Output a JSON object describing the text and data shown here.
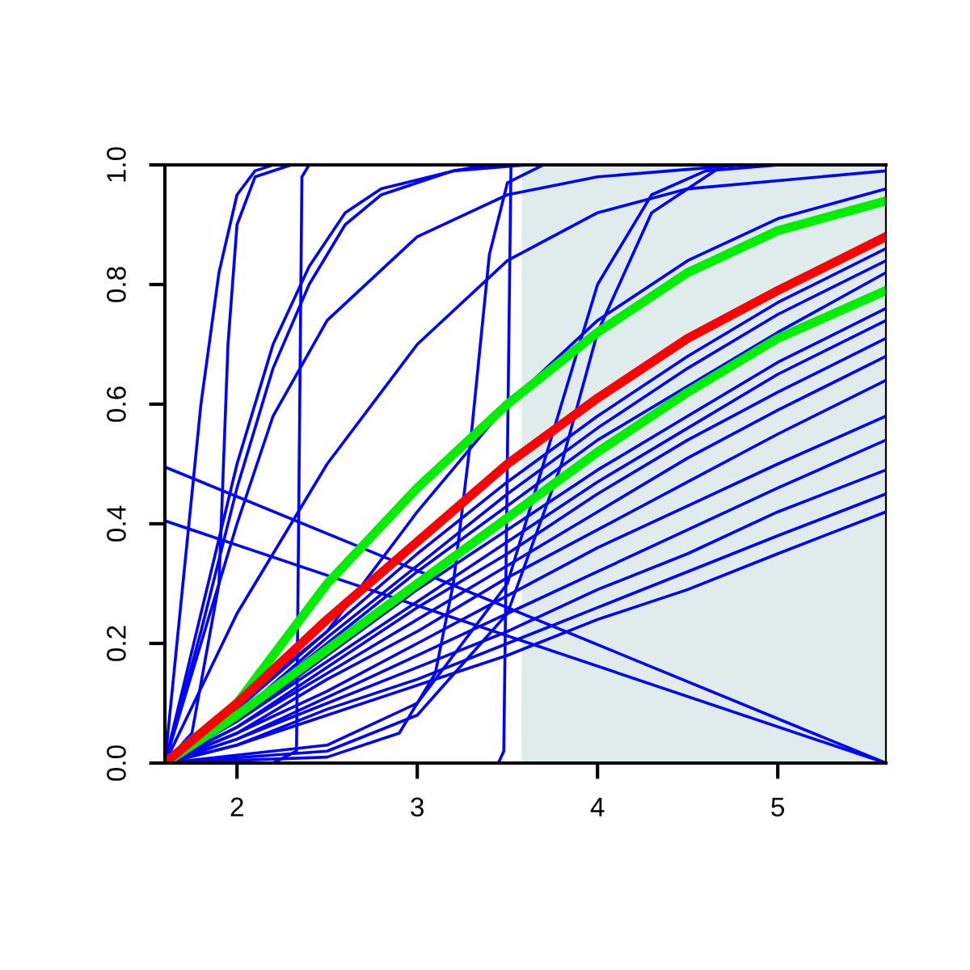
{
  "chart_data": {
    "type": "line",
    "xlim": [
      1.6,
      5.6
    ],
    "ylim": [
      0,
      1
    ],
    "xticks": [
      2,
      3,
      4,
      5
    ],
    "yticks": [
      {
        "value": 0,
        "label": "0.0"
      },
      {
        "value": 0.2,
        "label": "0.2"
      },
      {
        "value": 0.4,
        "label": "0.4"
      },
      {
        "value": 0.6,
        "label": "0.6"
      },
      {
        "value": 0.8,
        "label": "0.8"
      },
      {
        "value": 1,
        "label": "1.0"
      }
    ],
    "grid": false,
    "legend": false,
    "line_style": "solid",
    "marker": "none",
    "bands": [
      {
        "axis": "x",
        "from": 3.58,
        "to": 5.6,
        "color": "#e0ecec"
      }
    ],
    "series": [
      {
        "color": "#0000ff",
        "x": [
          1.6,
          1.7,
          1.8,
          1.9,
          2.0,
          2.1,
          2.2
        ],
        "values": [
          0,
          0.3,
          0.6,
          0.82,
          0.95,
          0.99,
          1
        ]
      },
      {
        "color": "#0000ff",
        "x": [
          1.6,
          1.75,
          1.9,
          1.95,
          2.0,
          2.1,
          2.3
        ],
        "values": [
          0,
          0.05,
          0.3,
          0.7,
          0.9,
          0.98,
          1
        ]
      },
      {
        "color": "#0000ff",
        "x": [
          1.6,
          1.8,
          2.0,
          2.2,
          2.4,
          2.6,
          2.8,
          3.2,
          3.4
        ],
        "values": [
          0,
          0.25,
          0.5,
          0.7,
          0.83,
          0.92,
          0.96,
          0.99,
          1
        ]
      },
      {
        "color": "#0000ff",
        "x": [
          1.6,
          1.8,
          2.0,
          2.2,
          2.4,
          2.6,
          2.8,
          3.2,
          3.6
        ],
        "values": [
          0,
          0.22,
          0.46,
          0.66,
          0.8,
          0.9,
          0.95,
          0.99,
          1
        ]
      },
      {
        "color": "#0000ff",
        "x": [
          1.6,
          1.8,
          2.0,
          2.2,
          2.5,
          3.0,
          3.5,
          4.0,
          4.8
        ],
        "values": [
          0,
          0.2,
          0.4,
          0.58,
          0.74,
          0.88,
          0.95,
          0.98,
          1
        ]
      },
      {
        "color": "#0000ff",
        "x": [
          1.6,
          2.2,
          2.33,
          2.36,
          2.4
        ],
        "values": [
          0,
          0,
          0.02,
          0.98,
          1
        ]
      },
      {
        "color": "#0000ff",
        "x": [
          1.6,
          2.0,
          2.5,
          3.0,
          3.5,
          4.0,
          4.5,
          5.6
        ],
        "values": [
          0,
          0.25,
          0.5,
          0.7,
          0.84,
          0.92,
          0.96,
          0.99
        ]
      },
      {
        "color": "#0000ff",
        "x": [
          1.6,
          2.5,
          2.9,
          3.1,
          3.2,
          3.3,
          3.4,
          3.5,
          3.7
        ],
        "values": [
          0,
          0.01,
          0.05,
          0.15,
          0.3,
          0.55,
          0.85,
          0.97,
          1
        ]
      },
      {
        "color": "#0000ff",
        "x": [
          1.6,
          3.45,
          3.48,
          3.52
        ],
        "values": [
          0,
          0,
          0.02,
          1
        ]
      },
      {
        "color": "#0000ff",
        "x": [
          1.6,
          2.5,
          3.0,
          3.5,
          3.8,
          4.0,
          4.3,
          4.6,
          5.0
        ],
        "values": [
          0,
          0.03,
          0.1,
          0.3,
          0.6,
          0.8,
          0.95,
          0.99,
          1
        ]
      },
      {
        "color": "#0000ff",
        "x": [
          1.6,
          2.5,
          3.0,
          3.5,
          3.8,
          4.0,
          4.3,
          4.7
        ],
        "values": [
          0,
          0.02,
          0.08,
          0.25,
          0.5,
          0.72,
          0.92,
          1
        ]
      },
      {
        "color": "#0000ff",
        "x": [
          1.6,
          2.5,
          3.0,
          3.5,
          4.0,
          4.5,
          5.0,
          5.6
        ],
        "values": [
          0,
          0.22,
          0.42,
          0.6,
          0.74,
          0.84,
          0.91,
          0.96
        ]
      },
      {
        "color": "#0000ff",
        "x": [
          1.6,
          5.6
        ],
        "values": [
          0.495,
          0
        ]
      },
      {
        "color": "#0000ff",
        "x": [
          1.6,
          5.6
        ],
        "values": [
          0.405,
          0
        ]
      },
      {
        "color": "#0000ff",
        "x": [
          1.6,
          2.0,
          2.5,
          3.0,
          3.5,
          4.0,
          4.5,
          5.0,
          5.6
        ],
        "values": [
          0,
          0.09,
          0.22,
          0.35,
          0.47,
          0.58,
          0.68,
          0.77,
          0.86
        ]
      },
      {
        "color": "#0000ff",
        "x": [
          1.6,
          2.0,
          2.5,
          3.0,
          3.5,
          4.0,
          4.5,
          5.0,
          5.6
        ],
        "values": [
          0,
          0.08,
          0.21,
          0.33,
          0.45,
          0.56,
          0.66,
          0.75,
          0.84
        ]
      },
      {
        "color": "#0000ff",
        "x": [
          1.6,
          2.0,
          2.5,
          3.0,
          3.5,
          4.0,
          4.5,
          5.0,
          5.6
        ],
        "values": [
          0,
          0.08,
          0.2,
          0.32,
          0.43,
          0.54,
          0.63,
          0.72,
          0.82
        ]
      },
      {
        "color": "#0000ff",
        "x": [
          1.6,
          2.0,
          2.5,
          3.0,
          3.5,
          4.0,
          4.5,
          5.0,
          5.6
        ],
        "values": [
          0,
          0.07,
          0.18,
          0.29,
          0.39,
          0.49,
          0.58,
          0.67,
          0.76
        ]
      },
      {
        "color": "#0000ff",
        "x": [
          1.6,
          2.0,
          2.5,
          3.0,
          3.5,
          4.0,
          4.5,
          5.0,
          5.6
        ],
        "values": [
          0,
          0.07,
          0.17,
          0.27,
          0.37,
          0.47,
          0.56,
          0.65,
          0.74
        ]
      },
      {
        "color": "#0000ff",
        "x": [
          1.6,
          2.0,
          2.5,
          3.0,
          3.5,
          4.0,
          4.5,
          5.0,
          5.6
        ],
        "values": [
          0,
          0.06,
          0.16,
          0.26,
          0.35,
          0.45,
          0.54,
          0.62,
          0.71
        ]
      },
      {
        "color": "#0000ff",
        "x": [
          1.6,
          2.0,
          2.5,
          3.0,
          3.5,
          4.0,
          4.5,
          5.0,
          5.6
        ],
        "values": [
          0,
          0.06,
          0.15,
          0.24,
          0.33,
          0.42,
          0.51,
          0.59,
          0.68
        ]
      },
      {
        "color": "#0000ff",
        "x": [
          1.6,
          2.0,
          2.5,
          3.0,
          3.5,
          4.0,
          4.5,
          5.0,
          5.6
        ],
        "values": [
          0,
          0.05,
          0.14,
          0.22,
          0.31,
          0.39,
          0.47,
          0.55,
          0.64
        ]
      },
      {
        "color": "#0000ff",
        "x": [
          1.6,
          2.0,
          2.5,
          3.0,
          3.5,
          4.0,
          4.5,
          5.0,
          5.6
        ],
        "values": [
          0,
          0.05,
          0.12,
          0.2,
          0.28,
          0.36,
          0.43,
          0.5,
          0.58
        ]
      },
      {
        "color": "#0000ff",
        "x": [
          1.6,
          2.0,
          2.5,
          3.0,
          3.5,
          4.0,
          4.5,
          5.0,
          5.6
        ],
        "values": [
          0,
          0.04,
          0.11,
          0.18,
          0.25,
          0.32,
          0.39,
          0.46,
          0.54
        ]
      },
      {
        "color": "#0000ff",
        "x": [
          1.6,
          2.0,
          2.5,
          3.0,
          3.5,
          4.0,
          4.5,
          5.0,
          5.6
        ],
        "values": [
          0,
          0.04,
          0.1,
          0.16,
          0.22,
          0.29,
          0.35,
          0.42,
          0.49
        ]
      },
      {
        "color": "#0000ff",
        "x": [
          1.6,
          2.0,
          2.5,
          3.0,
          3.5,
          4.0,
          4.5,
          5.0,
          5.6
        ],
        "values": [
          0,
          0.03,
          0.09,
          0.14,
          0.2,
          0.26,
          0.32,
          0.38,
          0.45
        ]
      },
      {
        "color": "#0000ff",
        "x": [
          1.6,
          2.0,
          2.5,
          3.0,
          3.5,
          4.0,
          4.5,
          5.0,
          5.6
        ],
        "values": [
          0,
          0.03,
          0.08,
          0.13,
          0.18,
          0.24,
          0.29,
          0.35,
          0.42
        ]
      },
      {
        "color": "#00ee00",
        "x": [
          1.6,
          2.0,
          2.5,
          3.0,
          3.5,
          4.0,
          4.5,
          5.0,
          5.6
        ],
        "values": [
          0,
          0.1,
          0.3,
          0.46,
          0.6,
          0.72,
          0.82,
          0.89,
          0.94
        ]
      },
      {
        "color": "#00ee00",
        "x": [
          1.6,
          2.0,
          2.5,
          3.0,
          3.5,
          4.0,
          4.5,
          5.0,
          5.6
        ],
        "values": [
          0,
          0.08,
          0.19,
          0.3,
          0.41,
          0.52,
          0.62,
          0.71,
          0.79
        ]
      },
      {
        "color": "#ff0000",
        "x": [
          1.6,
          2.0,
          2.5,
          3.0,
          3.5,
          4.0,
          4.5,
          5.0,
          5.6
        ],
        "values": [
          0,
          0.1,
          0.24,
          0.37,
          0.5,
          0.61,
          0.71,
          0.79,
          0.88
        ]
      }
    ]
  }
}
